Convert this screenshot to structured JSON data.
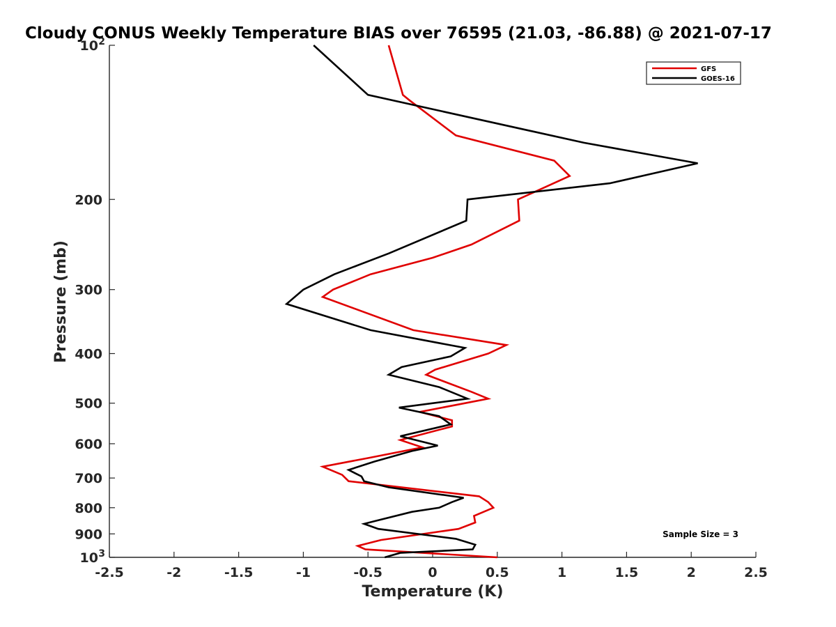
{
  "chart_data": {
    "type": "line",
    "title": "Cloudy CONUS Weekly Temperature BIAS over 76595 (21.03, -86.88) @ 2021-07-17",
    "xlabel": "Temperature (K)",
    "ylabel": "Pressure (mb)",
    "xlim": [
      -2.5,
      2.5
    ],
    "ylim": [
      100,
      1000
    ],
    "y_scale": "log",
    "y_inverted": true,
    "x_ticks": [
      {
        "value": -2.5,
        "label": "-2.5"
      },
      {
        "value": -2,
        "label": "-2"
      },
      {
        "value": -1.5,
        "label": "-1.5"
      },
      {
        "value": -1,
        "label": "-1"
      },
      {
        "value": -0.5,
        "label": "-0.5"
      },
      {
        "value": 0,
        "label": "0"
      },
      {
        "value": 0.5,
        "label": "0.5"
      },
      {
        "value": 1,
        "label": "1"
      },
      {
        "value": 1.5,
        "label": "1.5"
      },
      {
        "value": 2,
        "label": "2"
      },
      {
        "value": 2.5,
        "label": "2.5"
      }
    ],
    "y_ticks": [
      {
        "value": 100,
        "label": "10",
        "sup": "2"
      },
      {
        "value": 200,
        "label": "200",
        "sup": ""
      },
      {
        "value": 300,
        "label": "300",
        "sup": ""
      },
      {
        "value": 400,
        "label": "400",
        "sup": ""
      },
      {
        "value": 500,
        "label": "500",
        "sup": ""
      },
      {
        "value": 600,
        "label": "600",
        "sup": ""
      },
      {
        "value": 700,
        "label": "700",
        "sup": ""
      },
      {
        "value": 800,
        "label": "800",
        "sup": ""
      },
      {
        "value": 900,
        "label": "900",
        "sup": ""
      },
      {
        "value": 1000,
        "label": "10",
        "sup": "3"
      }
    ],
    "legend_position": "top-right",
    "annotation": "Sample Size = 3",
    "grid": false,
    "series": [
      {
        "name": "GFS",
        "color": "#e00000",
        "points": [
          [
            -0.34,
            100
          ],
          [
            -0.23,
            125
          ],
          [
            -0.18,
            128
          ],
          [
            0.18,
            150
          ],
          [
            0.94,
            168
          ],
          [
            1.06,
            180
          ],
          [
            0.66,
            200
          ],
          [
            0.67,
            220
          ],
          [
            0.3,
            245
          ],
          [
            0.0,
            260
          ],
          [
            -0.48,
            280
          ],
          [
            -0.77,
            300
          ],
          [
            -0.85,
            310
          ],
          [
            -0.15,
            360
          ],
          [
            0.57,
            385
          ],
          [
            0.43,
            400
          ],
          [
            0.02,
            430
          ],
          [
            -0.05,
            440
          ],
          [
            0.3,
            475
          ],
          [
            0.43,
            490
          ],
          [
            -0.1,
            520
          ],
          [
            0.15,
            540
          ],
          [
            0.15,
            555
          ],
          [
            -0.25,
            590
          ],
          [
            -0.08,
            610
          ],
          [
            -0.5,
            640
          ],
          [
            -0.85,
            665
          ],
          [
            -0.7,
            690
          ],
          [
            -0.65,
            710
          ],
          [
            0.36,
            760
          ],
          [
            0.43,
            780
          ],
          [
            0.47,
            800
          ],
          [
            0.32,
            830
          ],
          [
            0.33,
            855
          ],
          [
            0.2,
            880
          ],
          [
            -0.4,
            925
          ],
          [
            -0.58,
            950
          ],
          [
            -0.52,
            965
          ],
          [
            0.5,
            1000
          ]
        ]
      },
      {
        "name": "GOES-16",
        "color": "#000000",
        "points": [
          [
            -0.92,
            100
          ],
          [
            -0.5,
            125
          ],
          [
            1.17,
            155
          ],
          [
            2.05,
            170
          ],
          [
            1.37,
            186
          ],
          [
            0.27,
            200
          ],
          [
            0.26,
            220
          ],
          [
            -0.34,
            255
          ],
          [
            -0.76,
            280
          ],
          [
            -1.0,
            300
          ],
          [
            -1.13,
            320
          ],
          [
            -0.48,
            360
          ],
          [
            0.25,
            390
          ],
          [
            0.14,
            405
          ],
          [
            -0.24,
            425
          ],
          [
            -0.34,
            440
          ],
          [
            0.05,
            465
          ],
          [
            0.27,
            490
          ],
          [
            -0.26,
            510
          ],
          [
            0.05,
            530
          ],
          [
            0.14,
            550
          ],
          [
            -0.25,
            580
          ],
          [
            0.04,
            605
          ],
          [
            -0.16,
            620
          ],
          [
            -0.45,
            650
          ],
          [
            -0.65,
            675
          ],
          [
            -0.55,
            695
          ],
          [
            -0.53,
            710
          ],
          [
            -0.34,
            730
          ],
          [
            0.24,
            765
          ],
          [
            0.15,
            780
          ],
          [
            0.05,
            800
          ],
          [
            -0.16,
            815
          ],
          [
            -0.45,
            850
          ],
          [
            -0.53,
            860
          ],
          [
            -0.42,
            880
          ],
          [
            0.18,
            920
          ],
          [
            0.33,
            945
          ],
          [
            0.31,
            965
          ],
          [
            -0.25,
            980
          ],
          [
            -0.37,
            1000
          ]
        ]
      }
    ]
  }
}
